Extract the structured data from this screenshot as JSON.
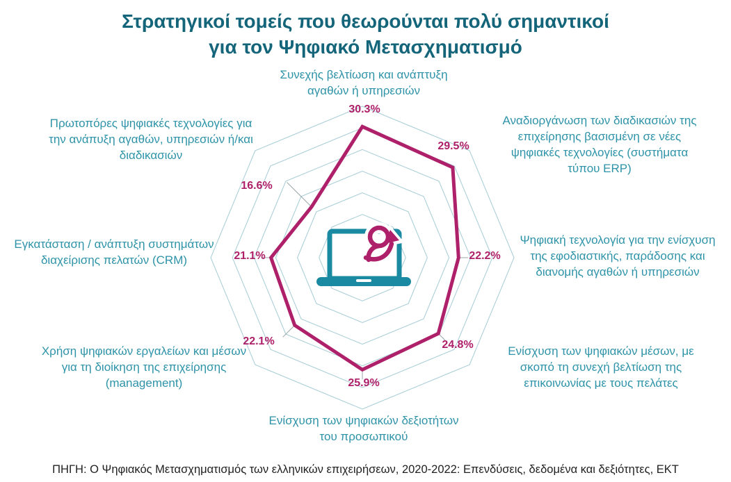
{
  "title": {
    "line1": "Στρατηγικοί τομείς που θεωρούνται πολύ σημαντικοί",
    "line2": "για τον Ψηφιακό Μετασχηματισμό"
  },
  "source": "ΠΗΓΗ: Ο Ψηφιακός Μετασχηματισμός των ελληνικών επιχειρήσεων, 2020-2022: Επενδύσεις, δεδομένα και δεξιότητες, ΕΚΤ",
  "colors": {
    "title": "#14657a",
    "axis_label": "#2e93a8",
    "grid": "#a5ccd5",
    "polygon": "#ae2069",
    "value_label": "#ae2069",
    "leader_line": "#9aa5a8",
    "icon_teal": "#1a89a2",
    "icon_magenta": "#ae2069",
    "source_text": "#1f1f1f",
    "background": "#ffffff"
  },
  "center_icon": {
    "name": "laptop-person-transform-icon",
    "description": "teal laptop with magenta person and upward curved arrow"
  },
  "chart_data": {
    "type": "radar",
    "title": "Στρατηγικοί τομείς που θεωρούνται πολύ σημαντικοί για τον Ψηφιακό Μετασχηματισμό",
    "categories": [
      "Συνεχής βελτίωση και ανάπτυξη αγαθών ή υπηρεσιών",
      "Αναδιοργάνωση των διαδικασιών της επιχείρησης βασισμένη σε νέες ψηφιακές τεχνολογίες (συστήματα τύπου ERP)",
      "Ψηφιακή τεχνολογία για την ενίσχυση της εφοδιαστικής, παράδοσης και διανομής αγαθών ή υπηρεσιών",
      "Ενίσχυση των ψηφιακών μέσων, με σκοπό τη συνεχή βελτίωση της επικοινωνίας με τους πελάτες",
      "Ενίσχυση των ψηφιακών δεξιοτήτων του προσωπικού",
      "Χρήση ψηφιακών εργαλείων και μέσων για τη διοίκηση της επιχείρησης (management)",
      "Εγκατάσταση / ανάπτυξη συστημάτων διαχείρισης πελατών (CRM)",
      "Πρωτοπόρες ψηφιακές τεχνολογίες για την ανάπυξη αγαθών, υπηρεσιών ή/και διαδικασιών"
    ],
    "values": [
      30.3,
      29.5,
      22.2,
      24.8,
      25.9,
      22.1,
      21.1,
      16.6
    ],
    "value_labels": [
      "30.3%",
      "29.5%",
      "22.2%",
      "24.8%",
      "25.9%",
      "22.1%",
      "21.1%",
      "16.6%"
    ],
    "unit": "%",
    "axis_start": "top",
    "direction": "clockwise",
    "r_min": 0,
    "r_max": 35,
    "rings_percent": [
      5,
      10,
      15,
      20,
      25,
      30,
      35
    ],
    "grid": true,
    "ring_tick_labels_shown": false,
    "legend": "none"
  }
}
